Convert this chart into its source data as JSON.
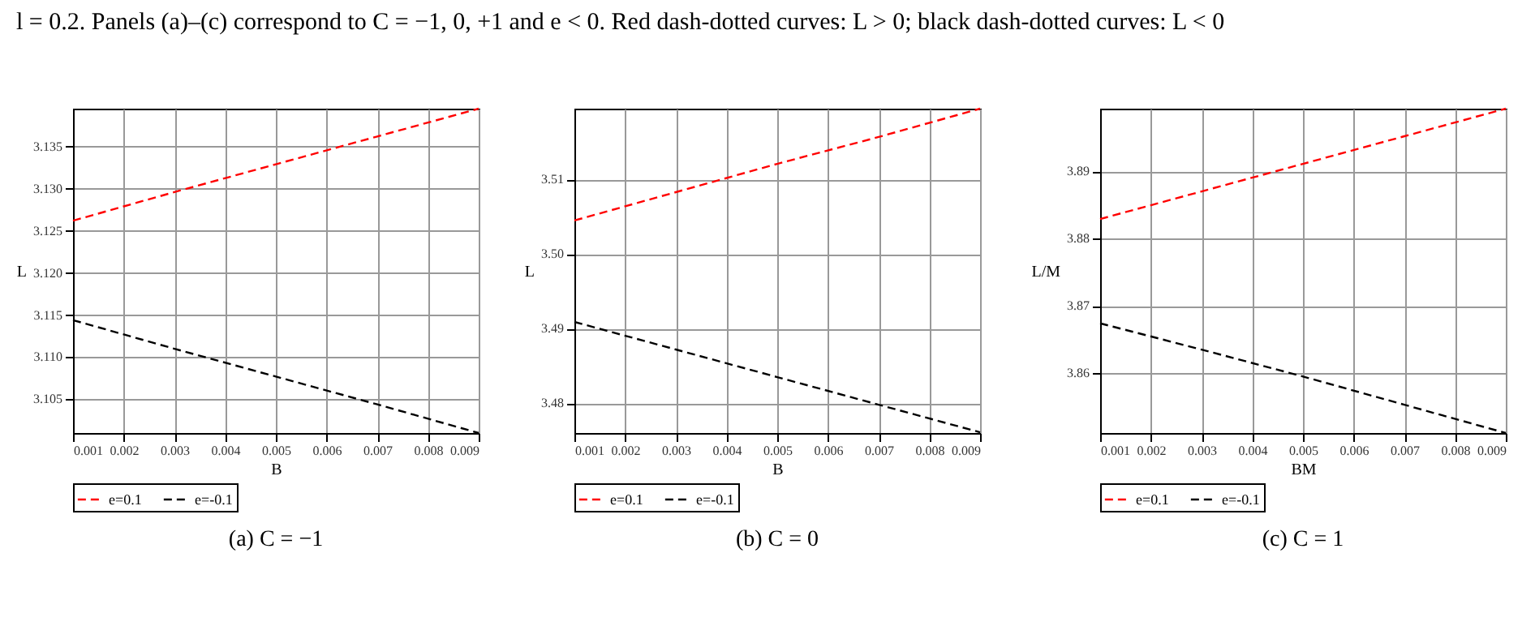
{
  "chart_data": [
    {
      "type": "line",
      "title": "(a) C = −1",
      "xlabel": "B",
      "ylabel": "L",
      "annotations": [
        "l = 0.2. Panels (a)–(c) correspond to C = −1, 0, +1 and e < 0. Red dash-dotted curves: L > 0; black dash-dotted curves: L < 0"
      ],
      "x": [
        0.001,
        0.003,
        0.005,
        0.007,
        0.009
      ],
      "series": [
        {
          "name": "e=0.1",
          "color": "#ff0000",
          "values": [
            3.1262,
            3.1296,
            3.1329,
            3.1362,
            3.1395
          ]
        },
        {
          "name": "e=-0.1",
          "color": "#000000",
          "values": [
            3.1144,
            3.111,
            3.1077,
            3.1044,
            3.101
          ]
        }
      ],
      "xlim": [
        0.001,
        0.009
      ],
      "xticks": [
        0.001,
        0.002,
        0.003,
        0.004,
        0.005,
        0.006,
        0.007,
        0.008,
        0.009
      ],
      "ylim": [
        3.101,
        3.1395
      ],
      "yticks": [
        3.105,
        {
          "value": 3.11,
          "label": "3.110"
        },
        3.115,
        {
          "value": 3.12,
          "label": "3.120"
        },
        3.125,
        {
          "value": 3.13,
          "label": "3.130"
        },
        3.135
      ],
      "grid": true,
      "legend": "bottom",
      "line_style": "dashed"
    },
    {
      "type": "line",
      "title": "(b) C = 0",
      "xlabel": "B",
      "ylabel": "L",
      "x": [
        0.001,
        0.003,
        0.005,
        0.007,
        0.009
      ],
      "series": [
        {
          "name": "e=0.1",
          "color": "#ff0000",
          "values": [
            3.5045,
            3.5083,
            3.5121,
            3.5157,
            3.5195
          ]
        },
        {
          "name": "e=-0.1",
          "color": "#000000",
          "values": [
            3.4909,
            3.4872,
            3.4835,
            3.4798,
            3.4761
          ]
        }
      ],
      "xlim": [
        0.001,
        0.009
      ],
      "xticks": [
        0.001,
        0.002,
        0.003,
        0.004,
        0.005,
        0.006,
        0.007,
        0.008,
        0.009
      ],
      "ylim": [
        3.476,
        3.5195
      ],
      "yticks": [
        3.48,
        3.49,
        {
          "value": 3.5,
          "label": "3.50"
        },
        3.51
      ],
      "grid": true,
      "legend": "bottom",
      "line_style": "dashed"
    },
    {
      "type": "line",
      "title": "(c) C = 1",
      "xlabel": "BM",
      "ylabel": "L/M",
      "x": [
        0.001,
        0.003,
        0.005,
        0.007,
        0.009
      ],
      "series": [
        {
          "name": "e=0.1",
          "color": "#ff0000",
          "values": [
            3.8829,
            3.887,
            3.8911,
            3.8952,
            3.8993
          ]
        },
        {
          "name": "e=-0.1",
          "color": "#000000",
          "values": [
            3.8674,
            3.8635,
            3.8595,
            3.8553,
            3.8511
          ]
        }
      ],
      "xlim": [
        0.001,
        0.009
      ],
      "xticks": [
        0.001,
        0.002,
        0.003,
        0.004,
        0.005,
        0.006,
        0.007,
        0.008,
        0.009
      ],
      "ylim": [
        3.8511,
        3.8993
      ],
      "yticks": [
        3.86,
        3.87,
        3.88,
        3.89
      ],
      "grid": true,
      "legend": "bottom",
      "line_style": "dashed"
    }
  ]
}
